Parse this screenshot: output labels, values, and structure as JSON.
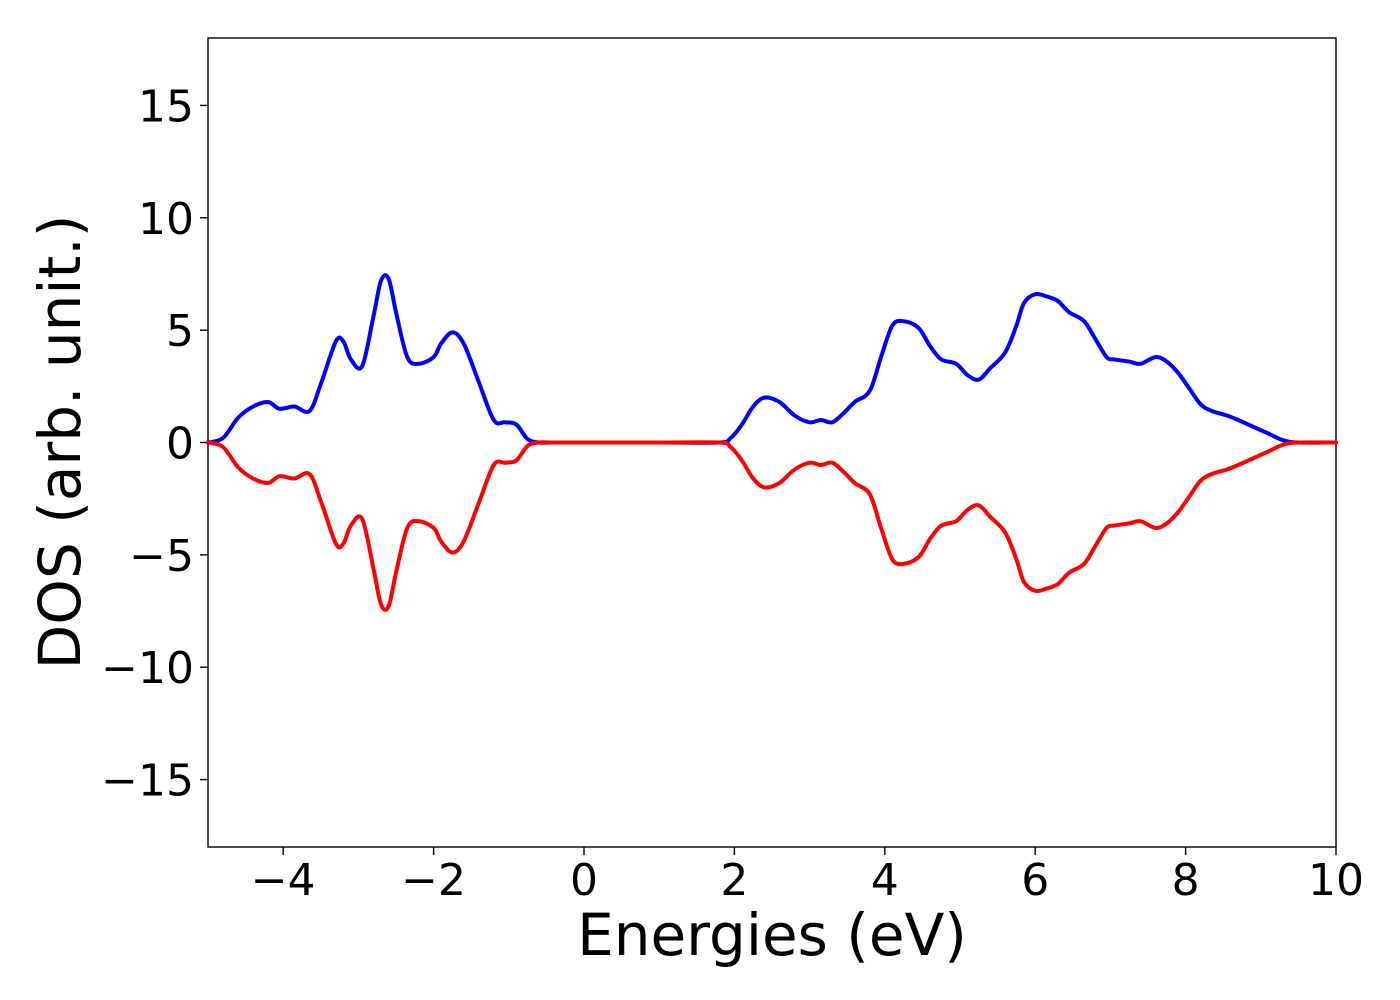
{
  "chart_data": {
    "type": "line",
    "title": "",
    "xlabel": "Energies (eV)",
    "ylabel": "DOS (arb. unit.)",
    "xlim": [
      -5,
      10
    ],
    "ylim": [
      -18,
      18
    ],
    "xticks": [
      -4,
      -2,
      0,
      2,
      4,
      6,
      8,
      10
    ],
    "xtick_labels": [
      "−4",
      "−2",
      "0",
      "2",
      "4",
      "6",
      "8",
      "10"
    ],
    "yticks": [
      15,
      10,
      5,
      0,
      -5,
      -10,
      -15
    ],
    "ytick_labels": [
      "15",
      "10",
      "5",
      "0",
      "−5",
      "−10",
      "−15"
    ],
    "grid": false,
    "legend": "none",
    "series": [
      {
        "color": "#0000ff",
        "x": [
          -5.0,
          -4.8,
          -4.6,
          -4.4,
          -4.2,
          -4.05,
          -3.85,
          -3.65,
          -3.5,
          -3.3,
          -3.2,
          -3.1,
          -2.95,
          -2.8,
          -2.7,
          -2.6,
          -2.5,
          -2.35,
          -2.2,
          -2.0,
          -1.9,
          -1.75,
          -1.6,
          -1.4,
          -1.2,
          -1.05,
          -0.9,
          -0.75,
          -0.6,
          -0.4,
          0.0,
          1.0,
          1.8,
          1.95,
          2.1,
          2.25,
          2.4,
          2.6,
          2.8,
          3.0,
          3.15,
          3.3,
          3.45,
          3.6,
          3.8,
          3.95,
          4.1,
          4.25,
          4.45,
          4.6,
          4.75,
          4.95,
          5.1,
          5.25,
          5.4,
          5.6,
          5.75,
          5.85,
          6.0,
          6.15,
          6.3,
          6.45,
          6.65,
          6.8,
          6.95,
          7.05,
          7.25,
          7.4,
          7.6,
          7.75,
          7.9,
          8.05,
          8.2,
          8.35,
          8.55,
          8.7,
          8.9,
          9.1,
          9.3,
          9.5,
          10.0
        ],
        "values": [
          0.0,
          0.2,
          1.1,
          1.6,
          1.8,
          1.5,
          1.6,
          1.4,
          2.6,
          4.5,
          4.5,
          3.7,
          3.4,
          5.6,
          7.2,
          7.3,
          5.8,
          3.8,
          3.5,
          3.8,
          4.4,
          4.9,
          4.4,
          2.7,
          1.0,
          0.9,
          0.8,
          0.15,
          0.0,
          0.0,
          0.0,
          0.0,
          0.0,
          0.2,
          0.8,
          1.6,
          2.0,
          1.8,
          1.2,
          0.9,
          1.0,
          0.9,
          1.3,
          1.8,
          2.3,
          3.8,
          5.2,
          5.4,
          5.1,
          4.3,
          3.7,
          3.5,
          3.0,
          2.8,
          3.3,
          4.0,
          5.2,
          6.2,
          6.6,
          6.5,
          6.3,
          5.8,
          5.4,
          4.6,
          3.8,
          3.7,
          3.6,
          3.5,
          3.8,
          3.6,
          3.1,
          2.4,
          1.7,
          1.4,
          1.2,
          1.0,
          0.7,
          0.4,
          0.1,
          0.0,
          0.0
        ]
      },
      {
        "color": "#ff0000",
        "x": [
          -5.0,
          -4.8,
          -4.6,
          -4.4,
          -4.2,
          -4.05,
          -3.85,
          -3.65,
          -3.5,
          -3.3,
          -3.2,
          -3.1,
          -2.95,
          -2.8,
          -2.7,
          -2.6,
          -2.5,
          -2.35,
          -2.2,
          -2.0,
          -1.9,
          -1.75,
          -1.6,
          -1.4,
          -1.2,
          -1.05,
          -0.9,
          -0.75,
          -0.6,
          -0.4,
          0.0,
          1.0,
          1.8,
          1.95,
          2.1,
          2.25,
          2.4,
          2.6,
          2.8,
          3.0,
          3.15,
          3.3,
          3.45,
          3.6,
          3.8,
          3.95,
          4.1,
          4.25,
          4.45,
          4.6,
          4.75,
          4.95,
          5.1,
          5.25,
          5.4,
          5.6,
          5.75,
          5.85,
          6.0,
          6.15,
          6.3,
          6.45,
          6.65,
          6.8,
          6.95,
          7.05,
          7.25,
          7.4,
          7.6,
          7.75,
          7.9,
          8.05,
          8.2,
          8.35,
          8.55,
          8.7,
          8.9,
          9.1,
          9.3,
          9.5,
          10.0
        ],
        "values": [
          0.0,
          -0.2,
          -1.1,
          -1.6,
          -1.8,
          -1.5,
          -1.6,
          -1.4,
          -2.6,
          -4.5,
          -4.5,
          -3.7,
          -3.4,
          -5.6,
          -7.2,
          -7.3,
          -5.8,
          -3.8,
          -3.5,
          -3.8,
          -4.4,
          -4.9,
          -4.4,
          -2.7,
          -1.0,
          -0.9,
          -0.8,
          -0.15,
          0.0,
          0.0,
          0.0,
          0.0,
          0.0,
          -0.2,
          -0.8,
          -1.6,
          -2.0,
          -1.8,
          -1.2,
          -0.9,
          -1.0,
          -0.9,
          -1.3,
          -1.8,
          -2.3,
          -3.8,
          -5.2,
          -5.4,
          -5.1,
          -4.3,
          -3.7,
          -3.5,
          -3.0,
          -2.8,
          -3.3,
          -4.0,
          -5.2,
          -6.2,
          -6.6,
          -6.5,
          -6.3,
          -5.8,
          -5.4,
          -4.6,
          -3.8,
          -3.7,
          -3.6,
          -3.5,
          -3.8,
          -3.6,
          -3.1,
          -2.4,
          -1.7,
          -1.4,
          -1.2,
          -1.0,
          -0.7,
          -0.4,
          -0.1,
          0.0,
          0.0
        ]
      }
    ]
  }
}
